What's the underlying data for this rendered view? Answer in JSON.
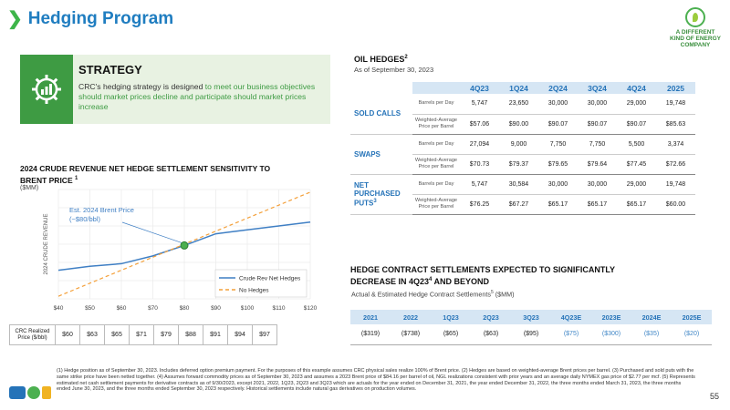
{
  "header": {
    "title": "Hedging Program",
    "logo_text": "A DIFFERENT KIND OF ENERGY COMPANY"
  },
  "strategy": {
    "title": "STRATEGY",
    "text_plain": "CRC's hedging strategy is designed ",
    "text_highlight": "to meet our business objectives should market prices decline and participate should market prices increase"
  },
  "sensitivity": {
    "title": "2024 CRUDE REVENUE NET HEDGE SETTLEMENT SENSITIVITY TO BRENT PRICE",
    "title_sup": "1",
    "unit": "($MM)",
    "ylabel": "2024 CRUDE REVENUE",
    "annotation_line1": "Est. 2024 Brent Price",
    "annotation_line2": "(~$80/bbl)",
    "crc_label": "CRC Realized Price ($/bbl)",
    "crc_values": [
      "$60",
      "$63",
      "$65",
      "$71",
      "$79",
      "$88",
      "$91",
      "$94",
      "$97"
    ]
  },
  "chart_data": {
    "type": "line",
    "x": [
      40,
      50,
      60,
      70,
      80,
      90,
      100,
      110,
      120
    ],
    "x_tick_labels": [
      "$40",
      "$50",
      "$60",
      "$70",
      "$80",
      "$90",
      "$100",
      "$110",
      "$120"
    ],
    "series": [
      {
        "name": "Crude Rev Net Hedges",
        "values": [
          60,
          63,
          65,
          71,
          79,
          88,
          91,
          94,
          97
        ],
        "color": "#3f7fc4",
        "style": "solid"
      },
      {
        "name": "No Hedges",
        "values": [
          40,
          50,
          60,
          70,
          80,
          90,
          100,
          110,
          120
        ],
        "color": "#f4a03a",
        "style": "dashed"
      }
    ],
    "highlight_point": {
      "x": 80,
      "y": 79
    },
    "ylim": [
      38,
      122
    ],
    "xlim": [
      40,
      120
    ],
    "legend_placement": "bottom-right",
    "grid": true
  },
  "oil_hedges": {
    "title": "OIL HEDGES",
    "title_sup": "2",
    "subtitle": "As of September 30, 2023",
    "columns": [
      "4Q23",
      "1Q24",
      "2Q24",
      "3Q24",
      "4Q24",
      "2025"
    ],
    "groups": [
      {
        "label": "SOLD CALLS",
        "sup": "",
        "rows": [
          {
            "metric": "Barrels per Day",
            "values": [
              "5,747",
              "23,650",
              "30,000",
              "30,000",
              "29,000",
              "19,748"
            ]
          },
          {
            "metric": "Weighted-Average Price per Barrel",
            "values": [
              "$57.06",
              "$90.00",
              "$90.07",
              "$90.07",
              "$90.07",
              "$85.63"
            ]
          }
        ]
      },
      {
        "label": "SWAPS",
        "sup": "",
        "rows": [
          {
            "metric": "Barrels per Day",
            "values": [
              "27,094",
              "9,000",
              "7,750",
              "7,750",
              "5,500",
              "3,374"
            ]
          },
          {
            "metric": "Weighted-Average Price per Barrel",
            "values": [
              "$70.73",
              "$79.37",
              "$79.65",
              "$79.64",
              "$77.45",
              "$72.66"
            ]
          }
        ]
      },
      {
        "label": "NET PURCHASED PUTS",
        "sup": "3",
        "rows": [
          {
            "metric": "Barrels per Day",
            "values": [
              "5,747",
              "30,584",
              "30,000",
              "30,000",
              "29,000",
              "19,748"
            ]
          },
          {
            "metric": "Weighted-Average Price per Barrel",
            "values": [
              "$76.25",
              "$67.27",
              "$65.17",
              "$65.17",
              "$65.17",
              "$60.00"
            ]
          }
        ]
      }
    ]
  },
  "settlements": {
    "title_a": "HEDGE CONTRACT SETTLEMENTS EXPECTED TO SIGNIFICANTLY DECREASE IN 4Q23",
    "title_sup": "4",
    "title_b": " AND BEYOND",
    "subtitle": "Actual & Estimated Hedge Contract Settlements",
    "subtitle_sup": "5",
    "subtitle_unit": " ($MM)",
    "columns": [
      "2021",
      "2022",
      "1Q23",
      "2Q23",
      "3Q23",
      "4Q23E",
      "2023E",
      "2024E",
      "2025E"
    ],
    "values": [
      "($319)",
      "($738)",
      "($65)",
      "($63)",
      "($95)",
      "($75)",
      "($300)",
      "($35)",
      "($20)"
    ],
    "estimated_flags": [
      false,
      false,
      false,
      false,
      false,
      true,
      true,
      true,
      true
    ]
  },
  "footnote": "(1) Hedge position as of September 30, 2023. Includes deferred option premium payment. For the purposes of this example assumes CRC physical sales realize 100% of Brent price. (2) Hedges are based on weighted-average Brent prices per barrel. (3) Purchased and sold puts with the same strike price have been netted together. (4) Assumes forward commodity prices as of September 30, 2023 and assumes a 2023 Brent price of $84.16 per barrel of oil, NGL realizations consistent with prior years and an average daily NYMEX gas price of $2.77 per mcf. (5) Represents estimated net cash settlement payments for derivative contracts as of 9/30/2023, except 2021, 2022, 1Q23, 2Q23 and 3Q23 which are actuals for the year ended on December 31, 2021, the year ended December 31, 2022, the three months ended March 31, 2023, the three months ended June 30, 2023, and the three months ended September 30, 2023 respectively. Historical settlements include natural gas derivatives on production volumes.",
  "page_number": "55"
}
